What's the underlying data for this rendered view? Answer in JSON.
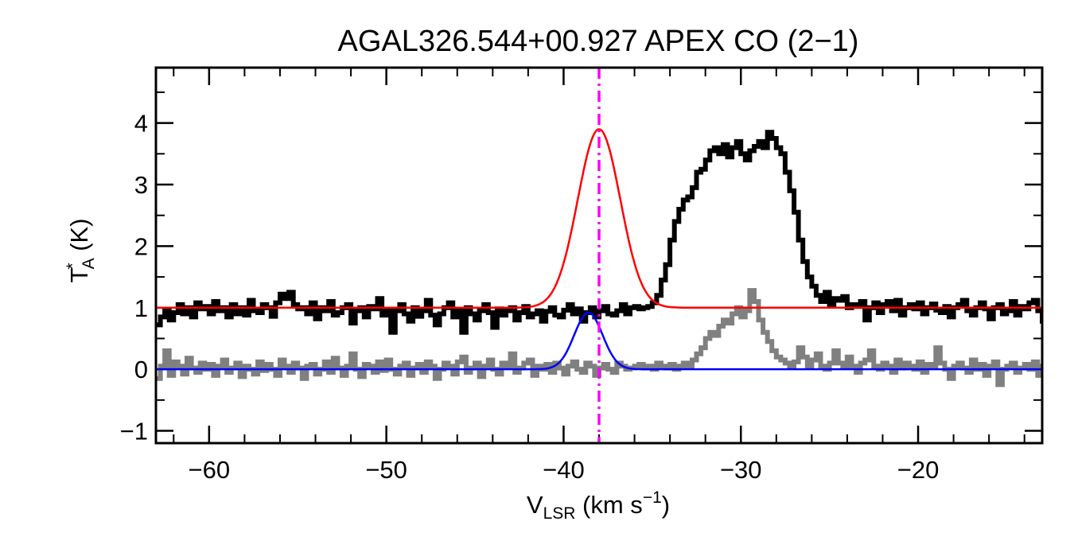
{
  "chart_data": {
    "type": "line",
    "title": "AGAL326.544+00.927  APEX CO (2−1)",
    "xlabel": {
      "base": "V",
      "sub": "LSR",
      "units_pre": " (km s",
      "sup": "−1",
      "units_post": ")"
    },
    "ylabel": {
      "base": "T",
      "sup": "*",
      "sub": "A",
      "units": " (K)"
    },
    "xlim": [
      -63,
      -13
    ],
    "ylim": [
      -1.2,
      4.9
    ],
    "xticks": [
      -60,
      -50,
      -40,
      -30,
      -20
    ],
    "xtick_labels": [
      "−60",
      "−50",
      "−40",
      "−30",
      "−20"
    ],
    "yticks": [
      -1,
      0,
      1,
      2,
      3,
      4
    ],
    "ytick_labels": [
      "−1",
      "0",
      "1",
      "2",
      "3",
      "4"
    ],
    "x_minor_step": 2,
    "y_minor_step": 0.5,
    "vline": {
      "x": -38.0,
      "color": "#ff00ff",
      "style": "dash-dot"
    },
    "series": [
      {
        "kind": "spectrum-step",
        "color": "#000000",
        "x_start": -63.0,
        "x_step": 0.25,
        "values": [
          0.72,
          0.85,
          0.95,
          0.8,
          0.92,
          1.05,
          0.9,
          1.0,
          0.85,
          1.08,
          0.98,
          1.02,
          0.9,
          1.1,
          0.95,
          1.0,
          0.85,
          1.05,
          0.9,
          1.0,
          0.88,
          1.12,
          0.95,
          0.92,
          1.05,
          1.0,
          0.86,
          1.08,
          1.22,
          1.15,
          1.25,
          1.05,
          0.98,
          1.0,
          0.9,
          1.08,
          0.82,
          1.0,
          0.95,
          1.1,
          0.88,
          0.92,
          1.0,
          1.05,
          0.75,
          0.95,
          1.0,
          0.85,
          1.02,
          0.98,
          1.15,
          0.88,
          0.95,
          0.6,
          0.95,
          1.05,
          0.9,
          0.78,
          1.0,
          0.86,
          0.95,
          1.12,
          0.88,
          0.72,
          0.9,
          1.0,
          1.08,
          0.85,
          0.95,
          0.6,
          1.0,
          0.9,
          0.8,
          0.95,
          1.05,
          0.92,
          0.68,
          0.98,
          0.88,
          0.95,
          1.0,
          0.8,
          0.92,
          1.02,
          0.85,
          0.9,
          0.95,
          0.78,
          0.94,
          1.0,
          0.88,
          0.85,
          0.96,
          1.05,
          0.9,
          0.98,
          0.78,
          0.92,
          1.0,
          0.85,
          0.95,
          1.02,
          0.9,
          0.88,
          0.95,
          1.05,
          0.9,
          1.0,
          1.02,
          0.98,
          1.0,
          1.02,
          1.08,
          1.2,
          1.45,
          1.7,
          2.1,
          2.4,
          2.6,
          2.75,
          2.8,
          2.95,
          3.2,
          3.25,
          3.4,
          3.55,
          3.6,
          3.5,
          3.65,
          3.45,
          3.6,
          3.7,
          3.5,
          3.4,
          3.55,
          3.62,
          3.7,
          3.6,
          3.85,
          3.75,
          3.6,
          3.5,
          3.2,
          2.9,
          2.55,
          2.1,
          1.75,
          1.5,
          1.35,
          1.2,
          1.1,
          1.25,
          1.05,
          1.15,
          1.12,
          1.18,
          1.0,
          1.05,
          1.02,
          1.1,
          0.8,
          1.0,
          1.08,
          0.92,
          1.05,
          1.1,
          0.95,
          1.12,
          0.88,
          1.0,
          1.05,
          0.98,
          1.08,
          0.9,
          1.0,
          1.06,
          0.96,
          0.92,
          1.02,
          0.85,
          1.0,
          1.05,
          1.12,
          0.95,
          0.88,
          1.0,
          1.08,
          0.98,
          0.82,
          1.0,
          1.05,
          0.9,
          0.95,
          1.1,
          0.88,
          1.02,
          0.98,
          1.08,
          1.12,
          0.95,
          0.78,
          1.0,
          1.05,
          0.92,
          0.9,
          0.98,
          1.0,
          0.85,
          1.02,
          0.95,
          1.08,
          1.0,
          0.88,
          1.05,
          0.92,
          1.06,
          1.0,
          0.95,
          0.9,
          1.02,
          0.98,
          1.1,
          0.98,
          1.08,
          0.92,
          1.05,
          0.88,
          1.0,
          0.82,
          1.05,
          1.12,
          1.0,
          1.3,
          1.2,
          1.15,
          0.9,
          1.25,
          1.1,
          1.15,
          1.05,
          0.95,
          1.0,
          1.12,
          0.9,
          1.05,
          0.88,
          1.02,
          0.92,
          0.98,
          1.05,
          0.82,
          0.9,
          0.95,
          0.85,
          1.0,
          0.9,
          1.1,
          1.05,
          1.02,
          1.12,
          0.95,
          1.2,
          1.45,
          1.5
        ]
      },
      {
        "kind": "spectrum-step",
        "color": "#808080",
        "x_start": -63.0,
        "x_step": 0.25,
        "values": [
          -0.15,
          0.05,
          0.3,
          -0.1,
          0.12,
          0.05,
          -0.08,
          0.18,
          0.02,
          -0.05,
          0.1,
          0.0,
          0.08,
          -0.1,
          0.05,
          0.15,
          -0.05,
          0.02,
          0.1,
          -0.12,
          0.05,
          0.0,
          -0.08,
          0.12,
          -0.02,
          0.08,
          0.0,
          -0.1,
          0.15,
          0.05,
          -0.05,
          0.1,
          0.02,
          -0.15,
          0.05,
          0.08,
          -0.08,
          0.0,
          0.12,
          -0.05,
          0.18,
          0.02,
          -0.1,
          0.05,
          0.25,
          0.0,
          -0.12,
          0.08,
          0.05,
          -0.05,
          0.12,
          -0.02,
          0.15,
          0.0,
          -0.08,
          0.05,
          0.1,
          -0.1,
          0.02,
          0.08,
          -0.05,
          0.12,
          0.05,
          -0.15,
          0.0,
          0.1,
          0.05,
          -0.08,
          0.12,
          0.2,
          -0.05,
          0.02,
          0.1,
          -0.12,
          0.05,
          0.15,
          0.0,
          -0.08,
          0.1,
          0.05,
          0.25,
          -0.05,
          0.02,
          0.1,
          0.15,
          -0.1,
          0.05,
          0.0,
          0.08,
          -0.05,
          0.1,
          0.02,
          -0.08,
          0.05,
          0.12,
          0.0,
          -0.05,
          0.1,
          0.05,
          -0.1,
          0.02,
          0.08,
          0.0,
          -0.05,
          0.1,
          0.05,
          0.0,
          0.02,
          0.05,
          0.08,
          0.02,
          0.05,
          0.0,
          0.1,
          0.05,
          0.02,
          0.08,
          0.0,
          0.05,
          0.1,
          0.05,
          0.15,
          0.25,
          0.35,
          0.5,
          0.6,
          0.55,
          0.7,
          0.8,
          0.75,
          0.9,
          1.0,
          0.85,
          0.95,
          1.28,
          1.1,
          0.8,
          0.6,
          0.45,
          0.3,
          0.2,
          0.15,
          0.1,
          0.05,
          0.12,
          0.35,
          0.2,
          0.05,
          0.15,
          0.25,
          0.05,
          0.0,
          0.1,
          0.3,
          0.1,
          0.05,
          0.2,
          0.05,
          -0.05,
          0.1,
          0.15,
          0.3,
          0.05,
          0.0,
          0.1,
          0.05,
          -0.05,
          0.15,
          0.02,
          0.1,
          0.05,
          0.0,
          0.12,
          -0.05,
          0.08,
          0.05,
          0.35,
          0.1,
          0.0,
          -0.15,
          0.05,
          0.1,
          0.02,
          -0.05,
          0.15,
          0.0,
          0.08,
          -0.1,
          0.05,
          0.12,
          -0.25,
          0.0,
          0.05,
          0.1,
          -0.05,
          0.02,
          0.08,
          0.0,
          0.12,
          -0.1,
          0.05,
          0.2,
          -0.05,
          0.02,
          0.08,
          0.1,
          -0.12,
          0.0,
          0.05,
          0.15,
          -0.05,
          0.08,
          0.0,
          -0.1,
          0.05,
          0.1,
          0.02,
          0.2,
          -0.05,
          0.12,
          0.0,
          0.05,
          -0.1,
          0.1,
          0.2,
          0.05,
          -0.05,
          0.12,
          0.0,
          0.05,
          -0.15,
          0.1,
          0.2,
          0.05,
          -0.05,
          0.08,
          0.0,
          0.12,
          -0.08,
          0.05,
          0.1,
          0.0,
          -0.2,
          0.05,
          -0.25,
          0.1,
          0.15,
          -0.05,
          0.05,
          0.12,
          0.0,
          -0.1,
          0.1,
          0.05,
          -0.05,
          -0.15,
          0.05,
          0.08,
          0.02,
          -0.05
        ]
      },
      {
        "kind": "gaussian-fit",
        "color": "#ff0000",
        "baseline": 1.0,
        "amplitude": 2.9,
        "center": -38.0,
        "sigma": 1.2
      },
      {
        "kind": "gaussian-fit",
        "color": "#0000ff",
        "baseline": 0.0,
        "amplitude": 0.92,
        "center": -38.6,
        "sigma": 0.8
      }
    ]
  }
}
